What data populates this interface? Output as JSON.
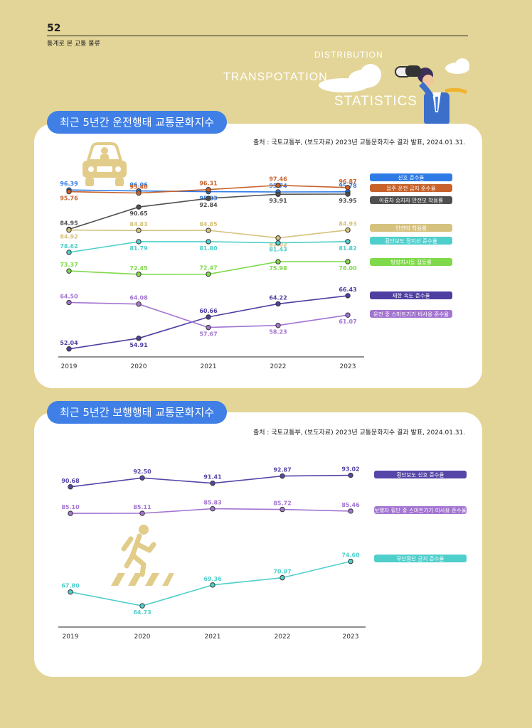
{
  "header": {
    "page_number": "52",
    "section": "통계로 본 교통 물류"
  },
  "hero": {
    "word1": "DISTRIBUTION",
    "word2": "TRANSPOTATION",
    "word3": "STATISTICS"
  },
  "icons": [
    "car-icon",
    "pedestrian-crossing-icon",
    "binoculars-man-illustration"
  ],
  "colors": {
    "background": "#e3d597",
    "pill": "#3f7fe6"
  },
  "chart_data": [
    {
      "type": "line",
      "title": "최근 5년간 운전행태 교통문화지수",
      "source": "출처 : 국토교통부, (보도자료) 2023년 교통문화지수 결과 발표, 2024.01.31.",
      "categories": [
        "2019",
        "2020",
        "2021",
        "2022",
        "2023"
      ],
      "series": [
        {
          "name": "신호 준수율",
          "color": "#2e7be6",
          "values": [
            96.39,
            96.06,
            95.83,
            95.74,
            95.78
          ]
        },
        {
          "name": "음주 운전 금지 준수율",
          "color": "#c8622a",
          "values": [
            95.76,
            95.4,
            96.31,
            97.46,
            96.87
          ]
        },
        {
          "name": "이륜차 승차자 안전모 착용률",
          "color": "#505050",
          "values": [
            84.95,
            90.65,
            92.84,
            93.91,
            93.95
          ]
        },
        {
          "name": "안전띠 착용률",
          "color": "#d6c27f",
          "values": [
            84.92,
            84.83,
            84.85,
            83.02,
            84.93
          ]
        },
        {
          "name": "횡단보도 정지선 준수율",
          "color": "#4fcfcc",
          "values": [
            78.62,
            81.79,
            81.8,
            81.43,
            81.82
          ]
        },
        {
          "name": "방향지시등 점등률",
          "color": "#7fd94a",
          "values": [
            73.37,
            72.45,
            72.47,
            75.98,
            76.0
          ]
        },
        {
          "name": "제한 속도 준수율",
          "color": "#4d3ea1",
          "values": [
            52.04,
            54.91,
            60.66,
            64.22,
            66.43
          ]
        },
        {
          "name": "운전 중 스마트기기 비사용 준수율",
          "color": "#a375d1",
          "values": [
            64.5,
            64.08,
            57.67,
            58.23,
            61.07
          ]
        }
      ]
    },
    {
      "type": "line",
      "title": "최근 5년간 보행행태 교통문화지수",
      "source": "출처 : 국토교통부, (보도자료) 2023년 교통문화지수 결과 발표, 2024.01.31.",
      "categories": [
        "2019",
        "2020",
        "2021",
        "2022",
        "2023"
      ],
      "series": [
        {
          "name": "횡단보도 신호 준수율",
          "color": "#5646a8",
          "values": [
            90.68,
            92.5,
            91.41,
            92.87,
            93.02
          ]
        },
        {
          "name": "보행자 횡단 중 스마트기기 미사용 준수율",
          "color": "#a375d1",
          "values": [
            85.1,
            85.11,
            85.83,
            85.72,
            85.46
          ]
        },
        {
          "name": "무단횡단 금지 준수율",
          "color": "#4fcfcc",
          "values": [
            67.8,
            64.73,
            69.36,
            70.97,
            74.6
          ]
        }
      ]
    }
  ]
}
